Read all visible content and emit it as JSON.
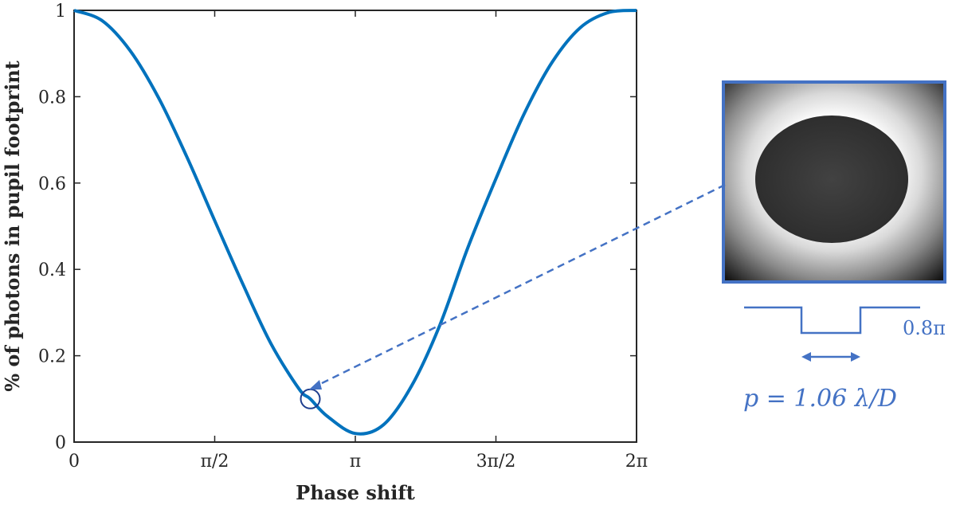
{
  "chart_data": {
    "type": "line",
    "title": "",
    "xlabel": "Phase shift",
    "ylabel": "% of photons in pupil footprint",
    "xlim": [
      0,
      6.2832
    ],
    "ylim": [
      0,
      1
    ],
    "grid": false,
    "x_ticks": [
      {
        "value": 0,
        "label": "0"
      },
      {
        "value": 1.5708,
        "label": "π/2"
      },
      {
        "value": 3.1416,
        "label": "π"
      },
      {
        "value": 4.7124,
        "label": "3π/2"
      },
      {
        "value": 6.2832,
        "label": "2π"
      }
    ],
    "y_ticks": [
      {
        "value": 0,
        "label": "0"
      },
      {
        "value": 0.2,
        "label": "0.2"
      },
      {
        "value": 0.4,
        "label": "0.4"
      },
      {
        "value": 0.6,
        "label": "0.6"
      },
      {
        "value": 0.8,
        "label": "0.8"
      },
      {
        "value": 1,
        "label": "1"
      }
    ],
    "series": [
      {
        "color": "#0072bd",
        "x": [
          0,
          0.3142,
          0.6283,
          0.9425,
          1.2566,
          1.5708,
          1.885,
          2.1991,
          2.5133,
          2.6389,
          2.8274,
          3.1416,
          3.4558,
          3.7699,
          4.0841,
          4.3982,
          4.7124,
          5.0265,
          5.3407,
          5.6549,
          5.969,
          6.2832
        ],
        "y": [
          1.0,
          0.976,
          0.906,
          0.798,
          0.662,
          0.513,
          0.366,
          0.228,
          0.123,
          0.1,
          0.06,
          0.02,
          0.04,
          0.13,
          0.27,
          0.45,
          0.61,
          0.76,
          0.88,
          0.96,
          0.995,
          1.0
        ]
      }
    ],
    "marker": {
      "x": 2.6389,
      "y": 0.1,
      "shape": "circle",
      "color": "#1f3f8f"
    },
    "annotation": {
      "pulse_label": "0.8π",
      "period_label": "p = 1.06 λ/D",
      "color": "#4472c4"
    }
  }
}
